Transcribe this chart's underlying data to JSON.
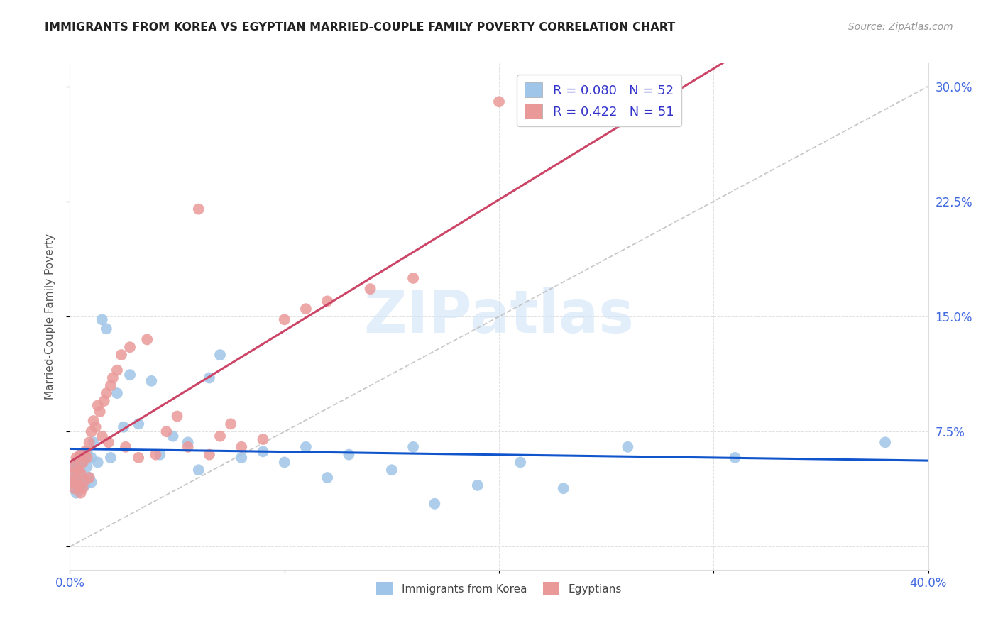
{
  "title": "IMMIGRANTS FROM KOREA VS EGYPTIAN MARRIED-COUPLE FAMILY POVERTY CORRELATION CHART",
  "source": "Source: ZipAtlas.com",
  "ylabel": "Married-Couple Family Poverty",
  "xmin": 0.0,
  "xmax": 0.4,
  "ymin": -0.015,
  "ymax": 0.315,
  "xticks": [
    0.0,
    0.1,
    0.2,
    0.3,
    0.4
  ],
  "xticklabels": [
    "0.0%",
    "",
    "",
    "",
    "40.0%"
  ],
  "yticks": [
    0.0,
    0.075,
    0.15,
    0.225,
    0.3
  ],
  "yticklabels_right": [
    "",
    "7.5%",
    "15.0%",
    "22.5%",
    "30.0%"
  ],
  "korea_color": "#9fc5e8",
  "egypt_color": "#ea9999",
  "korea_line_color": "#1155cc",
  "egypt_line_color": "#cc4466",
  "diag_color": "#bbbbbb",
  "korea_R": 0.08,
  "korea_N": 52,
  "egypt_R": 0.422,
  "egypt_N": 51,
  "legend_text_color": "#3333cc",
  "watermark": "ZIPatlas",
  "watermark_color": "#d0e4f7",
  "grid_color": "#dddddd",
  "title_color": "#222222",
  "source_color": "#999999",
  "ylabel_color": "#555555",
  "tick_color": "#4169e1",
  "korea_x": [
    0.001,
    0.001,
    0.002,
    0.002,
    0.003,
    0.003,
    0.003,
    0.004,
    0.004,
    0.005,
    0.005,
    0.005,
    0.006,
    0.006,
    0.007,
    0.007,
    0.008,
    0.008,
    0.009,
    0.01,
    0.01,
    0.011,
    0.013,
    0.015,
    0.017,
    0.019,
    0.022,
    0.025,
    0.028,
    0.032,
    0.038,
    0.042,
    0.048,
    0.055,
    0.06,
    0.065,
    0.07,
    0.08,
    0.09,
    0.1,
    0.11,
    0.12,
    0.13,
    0.15,
    0.16,
    0.17,
    0.19,
    0.21,
    0.23,
    0.26,
    0.31,
    0.38
  ],
  "korea_y": [
    0.048,
    0.042,
    0.052,
    0.038,
    0.055,
    0.045,
    0.035,
    0.05,
    0.04,
    0.06,
    0.048,
    0.038,
    0.055,
    0.043,
    0.058,
    0.04,
    0.052,
    0.062,
    0.045,
    0.058,
    0.042,
    0.068,
    0.055,
    0.148,
    0.142,
    0.058,
    0.1,
    0.078,
    0.112,
    0.08,
    0.108,
    0.06,
    0.072,
    0.068,
    0.05,
    0.11,
    0.125,
    0.058,
    0.062,
    0.055,
    0.065,
    0.045,
    0.06,
    0.05,
    0.065,
    0.028,
    0.04,
    0.055,
    0.038,
    0.065,
    0.058,
    0.068
  ],
  "egypt_x": [
    0.001,
    0.001,
    0.002,
    0.002,
    0.003,
    0.003,
    0.004,
    0.004,
    0.005,
    0.005,
    0.005,
    0.006,
    0.006,
    0.007,
    0.007,
    0.008,
    0.009,
    0.009,
    0.01,
    0.011,
    0.012,
    0.013,
    0.014,
    0.015,
    0.016,
    0.017,
    0.018,
    0.019,
    0.02,
    0.022,
    0.024,
    0.026,
    0.028,
    0.032,
    0.036,
    0.04,
    0.045,
    0.05,
    0.055,
    0.06,
    0.065,
    0.07,
    0.075,
    0.08,
    0.09,
    0.1,
    0.11,
    0.12,
    0.14,
    0.16,
    0.2
  ],
  "egypt_y": [
    0.048,
    0.042,
    0.052,
    0.038,
    0.058,
    0.043,
    0.05,
    0.04,
    0.06,
    0.048,
    0.035,
    0.055,
    0.038,
    0.062,
    0.043,
    0.058,
    0.068,
    0.045,
    0.075,
    0.082,
    0.078,
    0.092,
    0.088,
    0.072,
    0.095,
    0.1,
    0.068,
    0.105,
    0.11,
    0.115,
    0.125,
    0.065,
    0.13,
    0.058,
    0.135,
    0.06,
    0.075,
    0.085,
    0.065,
    0.22,
    0.06,
    0.072,
    0.08,
    0.065,
    0.07,
    0.148,
    0.155,
    0.16,
    0.168,
    0.175,
    0.29
  ]
}
